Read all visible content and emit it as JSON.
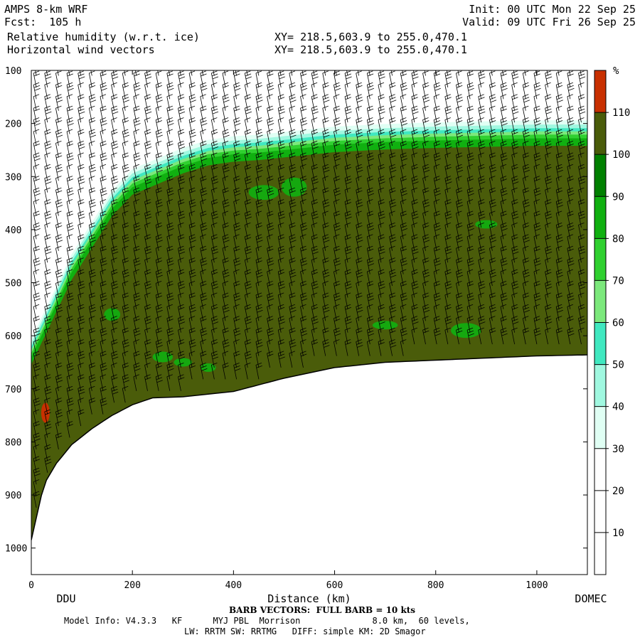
{
  "header": {
    "model": "AMPS 8-km WRF",
    "fcst": "Fcst:  105 h",
    "field1": "Relative humidity (w.r.t. ice)",
    "field2": "Horizontal wind vectors",
    "init": "Init: 00 UTC Mon 22 Sep 25",
    "valid": "Valid: 09 UTC Fri 26 Sep 25",
    "xy1": "XY= 218.5,603.9 to 255.0,470.1",
    "xy2": "XY= 218.5,603.9 to 255.0,470.1"
  },
  "footer": {
    "barb_note": "BARB VECTORS:  FULL BARB = 10 kts",
    "model_info": "Model Info: V4.3.3   KF      MYJ PBL  Morrison              8.0 km,  60 levels,",
    "physics": "LW: RRTM SW: RRTMG   DIFF: simple KM: 2D Smagor"
  },
  "chart_data": {
    "type": "heatmap",
    "title": "Relative humidity (w.r.t. ice)",
    "xlabel": "Distance (km)",
    "ylabel": "",
    "xlim": [
      0,
      1100
    ],
    "ylim": [
      1050,
      100
    ],
    "x_ticks": [
      "0",
      "200",
      "400",
      "600",
      "800",
      "1000"
    ],
    "y_ticks": [
      "100",
      "200",
      "300",
      "400",
      "500",
      "600",
      "700",
      "800",
      "900",
      "1000"
    ],
    "x_endpoint_labels": [
      "DDU",
      "DOMEC"
    ],
    "colorbar": {
      "unit": "%",
      "levels": [
        "10",
        "20",
        "30",
        "40",
        "50",
        "60",
        "70",
        "80",
        "90",
        "100",
        "110"
      ],
      "colors": [
        "#ffffff",
        "#ffffff",
        "#ffffff",
        "#e0fff4",
        "#a0f8e0",
        "#40e8c0",
        "#7ce87c",
        "#30d030",
        "#10b010",
        "#008000",
        "#4a5c0a",
        "#c83000"
      ]
    },
    "surface_pressure": {
      "x": [
        0,
        25,
        50,
        80,
        120,
        160,
        200,
        240,
        300,
        400,
        500,
        600,
        700,
        800,
        900,
        1000,
        1100
      ],
      "p": [
        985,
        880,
        840,
        805,
        775,
        750,
        730,
        717,
        715,
        705,
        680,
        660,
        650,
        646,
        642,
        638,
        636
      ]
    },
    "moist_top_pressure": {
      "x": [
        0,
        40,
        80,
        120,
        160,
        200,
        250,
        300,
        350,
        400,
        450,
        500,
        600,
        700,
        800,
        900,
        1000,
        1100
      ],
      "p": [
        640,
        560,
        480,
        420,
        360,
        320,
        300,
        280,
        265,
        258,
        255,
        250,
        240,
        235,
        232,
        230,
        228,
        228
      ]
    },
    "barb_note": "FULL BARB = 10 kts"
  }
}
